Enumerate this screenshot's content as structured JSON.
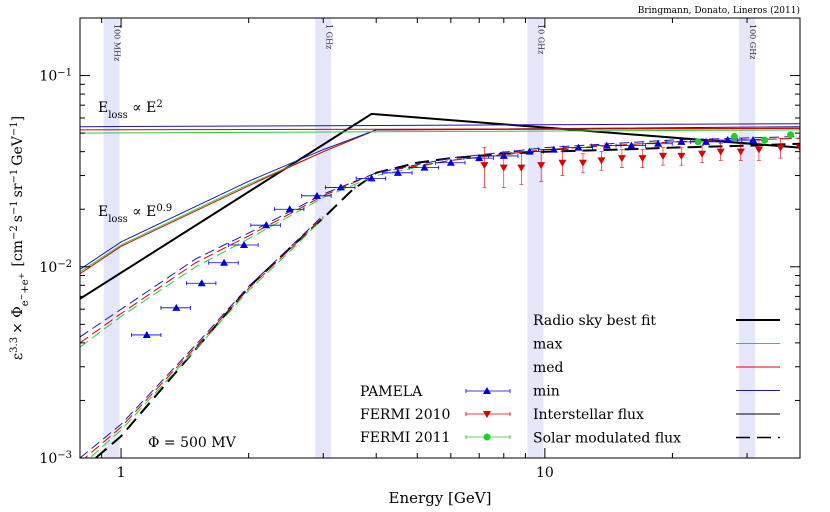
{
  "chart_data": {
    "type": "line",
    "credit": "Bringmann, Donato, Lineros (2011)",
    "xlabel": "Energy [GeV]",
    "ylabel_parts": {
      "prefix": "ε",
      "exp": "3.3",
      "times": "× Φ",
      "sub": "e",
      "sub_sup1": "−",
      "sub_mid": "+e",
      "sub_sup2": "+",
      "units_open": "[cm",
      "units_exp1": "−2",
      "units_s": "s",
      "units_exp2": "−1",
      "units_sr": "sr",
      "units_exp3": "−1",
      "units_gev": "GeV",
      "units_exp4": "−1",
      "units_close": "]"
    },
    "xscale": "log",
    "yscale": "log",
    "xlim": [
      0.8,
      40
    ],
    "ylim": [
      0.001,
      0.2
    ],
    "x_ticks": [
      {
        "v": 1,
        "label": "1"
      },
      {
        "v": 10,
        "label": "10"
      }
    ],
    "y_ticks": [
      {
        "v": 0.001,
        "base": "10",
        "exp": "−3"
      },
      {
        "v": 0.01,
        "base": "10",
        "exp": "−2"
      },
      {
        "v": 0.1,
        "base": "10",
        "exp": "−1"
      }
    ],
    "frequency_bands": [
      {
        "label": "100 MHz",
        "x": 0.95
      },
      {
        "label": "1 GHz",
        "x": 3.0
      },
      {
        "label": "10 GHz",
        "x": 9.5
      },
      {
        "label": "100 GHz",
        "x": 30
      }
    ],
    "annotations": {
      "eloss_e2": {
        "base": "E",
        "sub": "loss",
        "rest": " ∝ E",
        "sup": "2"
      },
      "eloss_e09": {
        "base": "E",
        "sub": "loss",
        "rest": " ∝ E",
        "sup": "0.9"
      },
      "phi": "Φ = 500 MV"
    },
    "legend_right": [
      {
        "label": "Radio sky best fit",
        "color": "#000000",
        "dash": "solid",
        "width": 2
      },
      {
        "label": "max",
        "color": "#2ecc40",
        "dash": "solid",
        "width": 1
      },
      {
        "label": "med",
        "color": "#e00000",
        "dash": "solid",
        "width": 1
      },
      {
        "label": "min",
        "color": "#1a1aa0",
        "dash": "solid",
        "width": 1
      },
      {
        "label": "Interstellar flux",
        "color": "#000000",
        "dash": "solid",
        "width": 1
      },
      {
        "label": "Solar modulated flux",
        "color": "#000000",
        "dash": "dashed",
        "width": 1.5
      }
    ],
    "legend_left": [
      {
        "label": "PAMELA",
        "color": "#0000dd",
        "marker": "triangle-up"
      },
      {
        "label": "FERMI 2010",
        "color": "#dd0000",
        "marker": "triangle-down"
      },
      {
        "label": "FERMI 2011",
        "color": "#22cc22",
        "marker": "circle"
      }
    ],
    "series": [
      {
        "name": "Radio sky best fit",
        "color": "#000000",
        "dash": "solid",
        "width": 2,
        "x": [
          0.8,
          3.9,
          40
        ],
        "y": [
          0.0068,
          0.063,
          0.042
        ]
      },
      {
        "name": "Radio sky best fit",
        "color": "#000000",
        "dash": "dashed",
        "width": 2,
        "x": [
          0.8,
          1.0,
          1.5,
          2.0,
          2.5,
          3.0,
          3.5,
          4.0,
          5,
          6,
          8,
          10,
          15,
          20,
          30,
          40
        ],
        "y": [
          0.00085,
          0.0013,
          0.0037,
          0.0078,
          0.0125,
          0.018,
          0.025,
          0.031,
          0.035,
          0.037,
          0.039,
          0.04,
          0.041,
          0.042,
          0.043,
          0.044
        ]
      },
      {
        "name": "max",
        "color": "#2ecc40",
        "dash": "solid",
        "width": 1,
        "x": [
          0.8,
          1,
          2,
          3,
          4,
          40
        ],
        "y": [
          0.0094,
          0.013,
          0.027,
          0.04,
          0.052,
          0.053
        ]
      },
      {
        "name": "med",
        "color": "#e00000",
        "dash": "solid",
        "width": 1,
        "x": [
          0.8,
          1,
          2,
          3,
          4,
          40
        ],
        "y": [
          0.0092,
          0.0128,
          0.0265,
          0.04,
          0.052,
          0.053
        ]
      },
      {
        "name": "min",
        "color": "#1a1aa0",
        "dash": "solid",
        "width": 1,
        "x": [
          0.8,
          1,
          2,
          3,
          4,
          40
        ],
        "y": [
          0.0097,
          0.0135,
          0.028,
          0.041,
          0.052,
          0.054
        ]
      },
      {
        "name": "max",
        "color": "#2ecc40",
        "dash": "solid",
        "width": 1,
        "x": [
          0.8,
          40
        ],
        "y": [
          0.05,
          0.052
        ]
      },
      {
        "name": "med",
        "color": "#e00000",
        "dash": "solid",
        "width": 1,
        "x": [
          0.8,
          40
        ],
        "y": [
          0.052,
          0.053
        ]
      },
      {
        "name": "min",
        "color": "#1a1aa0",
        "dash": "solid",
        "width": 1,
        "x": [
          0.8,
          40
        ],
        "y": [
          0.054,
          0.056
        ]
      },
      {
        "name": "max",
        "color": "#2ecc40",
        "dash": "dashed",
        "width": 1,
        "x": [
          0.8,
          1,
          1.5,
          2,
          3,
          4,
          6,
          10,
          20,
          40
        ],
        "y": [
          0.0038,
          0.0055,
          0.01,
          0.014,
          0.023,
          0.03,
          0.036,
          0.041,
          0.045,
          0.047
        ]
      },
      {
        "name": "med",
        "color": "#e00000",
        "dash": "dashed",
        "width": 1,
        "x": [
          0.8,
          1,
          1.5,
          2,
          3,
          4,
          6,
          10,
          20,
          40
        ],
        "y": [
          0.004,
          0.0057,
          0.0105,
          0.0145,
          0.0235,
          0.031,
          0.036,
          0.041,
          0.045,
          0.047
        ]
      },
      {
        "name": "min",
        "color": "#1a1aa0",
        "dash": "dashed",
        "width": 1,
        "x": [
          0.8,
          1,
          1.5,
          2,
          3,
          4,
          6,
          10,
          20,
          40
        ],
        "y": [
          0.0043,
          0.006,
          0.011,
          0.015,
          0.024,
          0.031,
          0.037,
          0.042,
          0.046,
          0.048
        ]
      },
      {
        "name": "max",
        "color": "#2ecc40",
        "dash": "dashed",
        "width": 1,
        "x": [
          0.8,
          1,
          1.5,
          2,
          2.5,
          3
        ],
        "y": [
          0.0009,
          0.0014,
          0.0037,
          0.0075,
          0.012,
          0.018
        ]
      },
      {
        "name": "med",
        "color": "#e00000",
        "dash": "dashed",
        "width": 1,
        "x": [
          0.8,
          1,
          1.5,
          2,
          2.5,
          3
        ],
        "y": [
          0.00095,
          0.00145,
          0.0038,
          0.0077,
          0.0123,
          0.0183
        ]
      },
      {
        "name": "min",
        "color": "#1a1aa0",
        "dash": "dashed",
        "width": 1,
        "x": [
          0.8,
          1,
          1.5,
          2,
          2.5,
          3
        ],
        "y": [
          0.001,
          0.0015,
          0.0039,
          0.0079,
          0.0126,
          0.0186
        ]
      }
    ],
    "points": {
      "PAMELA": {
        "color": "#0000dd",
        "marker": "triangle-up",
        "x": [
          1.15,
          1.35,
          1.55,
          1.75,
          1.95,
          2.2,
          2.5,
          2.9,
          3.3,
          3.9,
          4.5,
          5.2,
          6.0,
          7.0,
          8.0,
          9.2,
          10.5,
          12,
          14,
          16,
          18.5,
          21,
          24,
          27,
          31
        ],
        "y": [
          0.0044,
          0.0061,
          0.0082,
          0.0105,
          0.013,
          0.0165,
          0.02,
          0.0235,
          0.026,
          0.029,
          0.031,
          0.033,
          0.035,
          0.037,
          0.038,
          0.04,
          0.041,
          0.042,
          0.043,
          0.043,
          0.044,
          0.045,
          0.045,
          0.046,
          0.046
        ],
        "xerr": 0.08
      },
      "FERMI 2010": {
        "color": "#dd0000",
        "marker": "triangle-down",
        "x": [
          7.2,
          8.0,
          8.8,
          9.8,
          11,
          12.3,
          13.6,
          15.2,
          17,
          19,
          21,
          23.5,
          26,
          29,
          32,
          36,
          40
        ],
        "y": [
          0.034,
          0.033,
          0.033,
          0.034,
          0.035,
          0.035,
          0.036,
          0.037,
          0.037,
          0.038,
          0.038,
          0.039,
          0.04,
          0.04,
          0.041,
          0.042,
          0.042
        ],
        "yerr": [
          0.008,
          0.007,
          0.006,
          0.006,
          0.005,
          0.004,
          0.004,
          0.004,
          0.004,
          0.004,
          0.004,
          0.004,
          0.004,
          0.004,
          0.005,
          0.005,
          0.005
        ]
      },
      "FERMI 2011": {
        "color": "#22cc22",
        "marker": "circle",
        "x": [
          23,
          28,
          33,
          38
        ],
        "y": [
          0.045,
          0.048,
          0.046,
          0.049
        ]
      }
    }
  }
}
